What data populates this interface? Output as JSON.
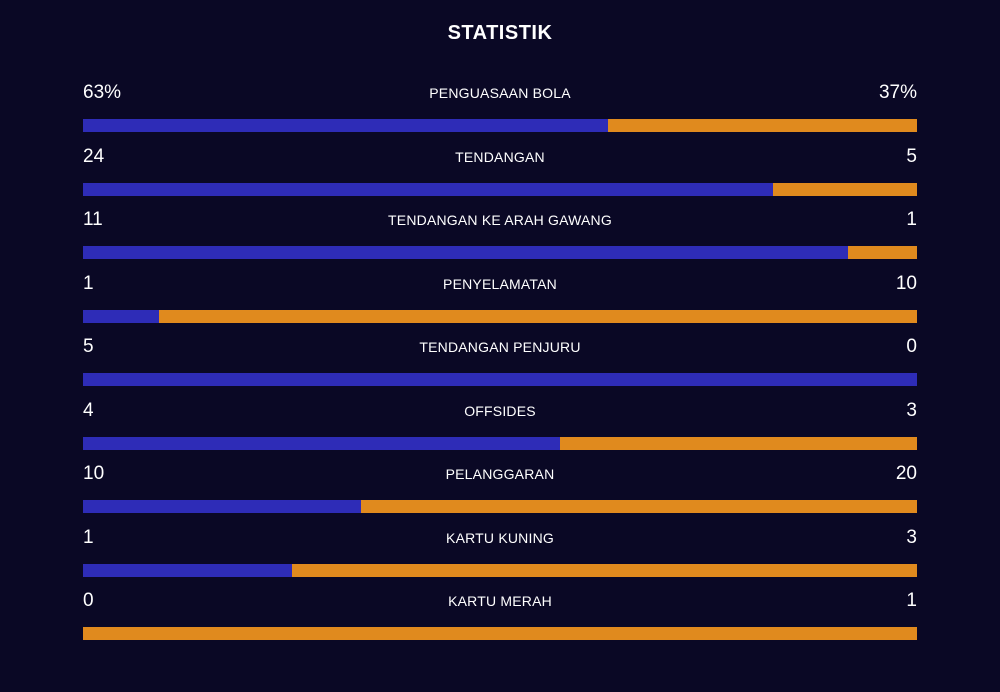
{
  "header": {
    "title": "STATISTIK"
  },
  "colors": {
    "background": "#0a0825",
    "home": "#2e2cb7",
    "away": "#e08a1e",
    "text": "#ffffff"
  },
  "stats": [
    {
      "label": "PENGUASAAN BOLA",
      "home_display": "63%",
      "away_display": "37%",
      "home": 63,
      "away": 37
    },
    {
      "label": "TENDANGAN",
      "home_display": "24",
      "away_display": "5",
      "home": 24,
      "away": 5
    },
    {
      "label": "TENDANGAN KE ARAH GAWANG",
      "home_display": "11",
      "away_display": "1",
      "home": 11,
      "away": 1
    },
    {
      "label": "PENYELAMATAN",
      "home_display": "1",
      "away_display": "10",
      "home": 1,
      "away": 10
    },
    {
      "label": "TENDANGAN PENJURU",
      "home_display": "5",
      "away_display": "0",
      "home": 5,
      "away": 0
    },
    {
      "label": "OFFSIDES",
      "home_display": "4",
      "away_display": "3",
      "home": 4,
      "away": 3
    },
    {
      "label": "PELANGGARAN",
      "home_display": "10",
      "away_display": "20",
      "home": 10,
      "away": 20
    },
    {
      "label": "KARTU KUNING",
      "home_display": "1",
      "away_display": "3",
      "home": 1,
      "away": 3
    },
    {
      "label": "KARTU MERAH",
      "home_display": "0",
      "away_display": "1",
      "home": 0,
      "away": 1
    }
  ]
}
